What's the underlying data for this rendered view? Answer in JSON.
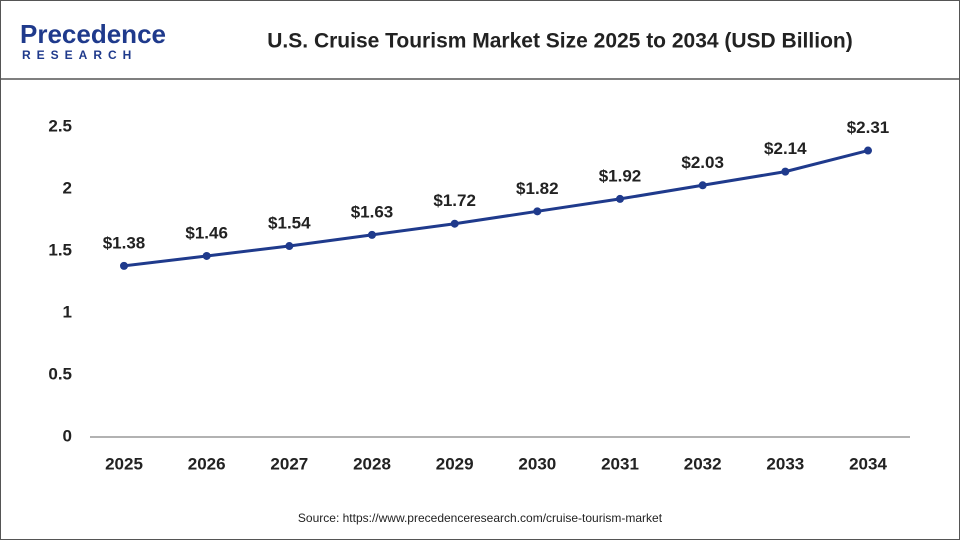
{
  "logo": {
    "name": "Precedence",
    "tagline": "RESEARCH"
  },
  "chart_data": {
    "type": "line",
    "title": "U.S. Cruise Tourism Market Size 2025 to 2034 (USD Billion)",
    "source": "Source: https://www.precedenceresearch.com/cruise-tourism-market",
    "categories": [
      "2025",
      "2026",
      "2027",
      "2028",
      "2029",
      "2030",
      "2031",
      "2032",
      "2033",
      "2034"
    ],
    "values": [
      1.38,
      1.46,
      1.54,
      1.63,
      1.72,
      1.82,
      1.92,
      2.03,
      2.14,
      2.31
    ],
    "value_labels": [
      "$1.38",
      "$1.46",
      "$1.54",
      "$1.63",
      "$1.72",
      "$1.82",
      "$1.92",
      "$2.03",
      "$2.14",
      "$2.31"
    ],
    "color": "#1f3a8c",
    "ylim": [
      0,
      2.5
    ],
    "yticks": [
      0,
      0.5,
      1,
      1.5,
      2,
      2.5
    ],
    "grid": false
  }
}
